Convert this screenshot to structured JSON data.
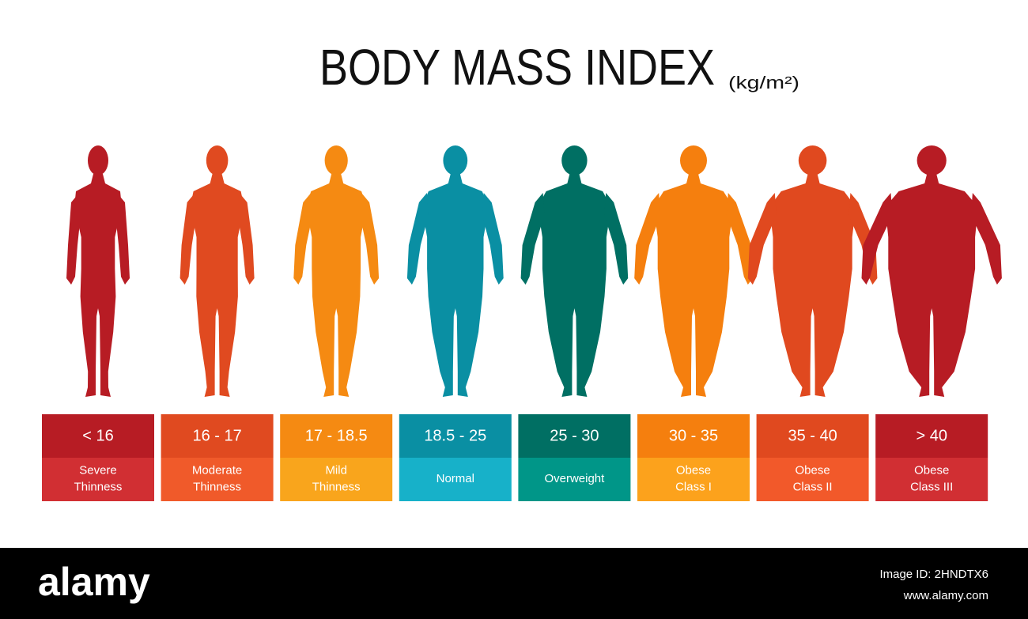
{
  "header": {
    "title": "BODY MASS INDEX",
    "unit": "(kg/m²)"
  },
  "categories": [
    {
      "range": "< 16",
      "lines": [
        "Severe",
        "Thinness"
      ],
      "color": "#b71c24",
      "light_color": "#d12f33"
    },
    {
      "range": "16 - 17",
      "lines": [
        "Moderate",
        "Thinness"
      ],
      "color": "#e04a20",
      "light_color": "#f05a2a"
    },
    {
      "range": "17 - 18.5",
      "lines": [
        "Mild",
        "Thinness"
      ],
      "color": "#f58a12",
      "light_color": "#f9a51c"
    },
    {
      "range": "18.5 - 25",
      "lines": [
        "Normal"
      ],
      "color": "#0a8fa3",
      "light_color": "#17b1c9"
    },
    {
      "range": "25 - 30",
      "lines": [
        "Overweight"
      ],
      "color": "#006f63",
      "light_color": "#009688"
    },
    {
      "range": "30 - 35",
      "lines": [
        "Obese",
        "Class I"
      ],
      "color": "#f57f0e",
      "light_color": "#fca21c"
    },
    {
      "range": "35 - 40",
      "lines": [
        "Obese",
        "Class II"
      ],
      "color": "#e0491f",
      "light_color": "#f2592a"
    },
    {
      "range": "> 40",
      "lines": [
        "Obese",
        "Class III"
      ],
      "color": "#b71c24",
      "light_color": "#d12f33"
    }
  ],
  "footer": {
    "brand": "alamy",
    "image_id": "Image ID: 2HNDTX6",
    "url": "www.alamy.com"
  }
}
